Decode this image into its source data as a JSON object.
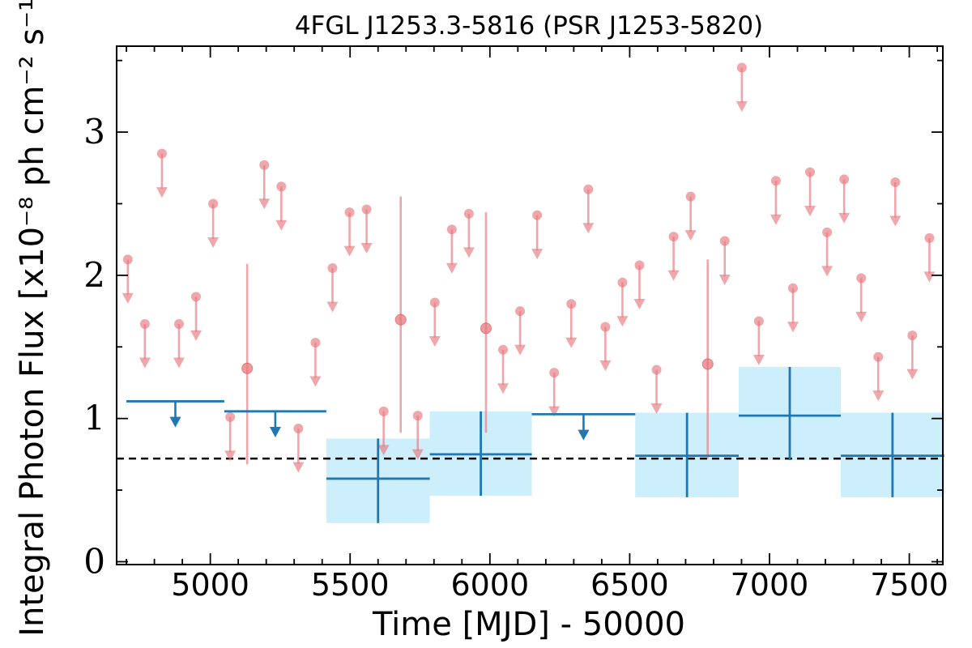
{
  "chart_data": {
    "type": "scatter",
    "title": "4FGL J1253.3-5816 (PSR J1253-5820)",
    "xlabel": "Time [MJD] - 50000",
    "ylabel": "Integral Photon Flux [x10⁻⁸ ph cm⁻² s⁻¹]",
    "xlim": [
      4665,
      7620
    ],
    "ylim": [
      -0.02,
      3.6
    ],
    "xticks": [
      5000,
      5500,
      6000,
      6500,
      7000,
      7500
    ],
    "xtick_labels": [
      "5000",
      "5500",
      "6000",
      "6500",
      "7000",
      "7500"
    ],
    "yticks": [
      0,
      1,
      2,
      3
    ],
    "ytick_labels": [
      "0",
      "1",
      "2",
      "3"
    ],
    "grid": false,
    "reference_line": {
      "y": 0.72,
      "style": "dashed",
      "color": "#000000"
    },
    "colors": {
      "short_bins": "#e8787e",
      "long_bins": "#1f77b4",
      "long_bins_band": "#cdeefb"
    },
    "series": [
      {
        "color": "#e8787e",
        "bin_width": 61,
        "points": [
          {
            "x": 4705,
            "y": 2.11,
            "upper_limit": true
          },
          {
            "x": 4766,
            "y": 1.66,
            "upper_limit": true
          },
          {
            "x": 4827,
            "y": 2.85,
            "upper_limit": true
          },
          {
            "x": 4888,
            "y": 1.66,
            "upper_limit": true
          },
          {
            "x": 4949,
            "y": 1.85,
            "upper_limit": true
          },
          {
            "x": 5010,
            "y": 2.5,
            "upper_limit": true
          },
          {
            "x": 5071,
            "y": 1.01,
            "upper_limit": true
          },
          {
            "x": 5132,
            "y": 1.35,
            "upper_limit": false,
            "yerr_low": 0.68,
            "yerr_high": 2.08
          },
          {
            "x": 5193,
            "y": 2.77,
            "upper_limit": true
          },
          {
            "x": 5254,
            "y": 2.62,
            "upper_limit": true
          },
          {
            "x": 5315,
            "y": 0.93,
            "upper_limit": true
          },
          {
            "x": 5376,
            "y": 1.53,
            "upper_limit": true
          },
          {
            "x": 5437,
            "y": 2.05,
            "upper_limit": true
          },
          {
            "x": 5498,
            "y": 2.44,
            "upper_limit": true
          },
          {
            "x": 5559,
            "y": 2.46,
            "upper_limit": true
          },
          {
            "x": 5620,
            "y": 1.05,
            "upper_limit": true
          },
          {
            "x": 5681,
            "y": 1.69,
            "upper_limit": false,
            "yerr_low": 0.9,
            "yerr_high": 2.55
          },
          {
            "x": 5742,
            "y": 1.02,
            "upper_limit": true
          },
          {
            "x": 5803,
            "y": 1.81,
            "upper_limit": true
          },
          {
            "x": 5864,
            "y": 2.32,
            "upper_limit": true
          },
          {
            "x": 5925,
            "y": 2.43,
            "upper_limit": true
          },
          {
            "x": 5986,
            "y": 1.63,
            "upper_limit": false,
            "yerr_low": 0.9,
            "yerr_high": 2.44
          },
          {
            "x": 6047,
            "y": 1.48,
            "upper_limit": true
          },
          {
            "x": 6108,
            "y": 1.75,
            "upper_limit": true
          },
          {
            "x": 6169,
            "y": 2.42,
            "upper_limit": true
          },
          {
            "x": 6230,
            "y": 1.32,
            "upper_limit": true
          },
          {
            "x": 6291,
            "y": 1.8,
            "upper_limit": true
          },
          {
            "x": 6352,
            "y": 2.6,
            "upper_limit": true
          },
          {
            "x": 6413,
            "y": 1.64,
            "upper_limit": true
          },
          {
            "x": 6474,
            "y": 1.95,
            "upper_limit": true
          },
          {
            "x": 6535,
            "y": 2.07,
            "upper_limit": true
          },
          {
            "x": 6596,
            "y": 1.34,
            "upper_limit": true
          },
          {
            "x": 6657,
            "y": 2.27,
            "upper_limit": true
          },
          {
            "x": 6718,
            "y": 2.55,
            "upper_limit": true
          },
          {
            "x": 6779,
            "y": 1.38,
            "upper_limit": false,
            "yerr_low": 0.72,
            "yerr_high": 2.11
          },
          {
            "x": 6840,
            "y": 2.24,
            "upper_limit": true
          },
          {
            "x": 6901,
            "y": 3.45,
            "upper_limit": true
          },
          {
            "x": 6962,
            "y": 1.68,
            "upper_limit": true
          },
          {
            "x": 7023,
            "y": 2.66,
            "upper_limit": true
          },
          {
            "x": 7084,
            "y": 1.91,
            "upper_limit": true
          },
          {
            "x": 7145,
            "y": 2.72,
            "upper_limit": true
          },
          {
            "x": 7206,
            "y": 2.3,
            "upper_limit": true
          },
          {
            "x": 7267,
            "y": 2.67,
            "upper_limit": true
          },
          {
            "x": 7328,
            "y": 1.98,
            "upper_limit": true
          },
          {
            "x": 7389,
            "y": 1.43,
            "upper_limit": true
          },
          {
            "x": 7450,
            "y": 2.65,
            "upper_limit": true
          },
          {
            "x": 7511,
            "y": 1.58,
            "upper_limit": true
          },
          {
            "x": 7572,
            "y": 2.26,
            "upper_limit": true
          }
        ]
      },
      {
        "color": "#1f77b4",
        "bins": [
          {
            "x_start": 4700,
            "x_end": 5050,
            "y": 1.12,
            "upper_limit": true
          },
          {
            "x_start": 5050,
            "x_end": 5415,
            "y": 1.05,
            "upper_limit": true
          },
          {
            "x_start": 5415,
            "x_end": 5785,
            "y": 0.58,
            "upper_limit": false,
            "y_low": 0.27,
            "y_high": 0.86
          },
          {
            "x_start": 5785,
            "x_end": 6150,
            "y": 0.75,
            "upper_limit": false,
            "y_low": 0.46,
            "y_high": 1.05
          },
          {
            "x_start": 6150,
            "x_end": 6520,
            "y": 1.03,
            "upper_limit": true
          },
          {
            "x_start": 6520,
            "x_end": 6890,
            "y": 0.74,
            "upper_limit": false,
            "y_low": 0.45,
            "y_high": 1.04
          },
          {
            "x_start": 6890,
            "x_end": 7255,
            "y": 1.02,
            "upper_limit": false,
            "y_low": 0.71,
            "y_high": 1.36
          },
          {
            "x_start": 7255,
            "x_end": 7625,
            "y": 0.74,
            "upper_limit": false,
            "y_low": 0.45,
            "y_high": 1.04
          }
        ]
      }
    ]
  }
}
